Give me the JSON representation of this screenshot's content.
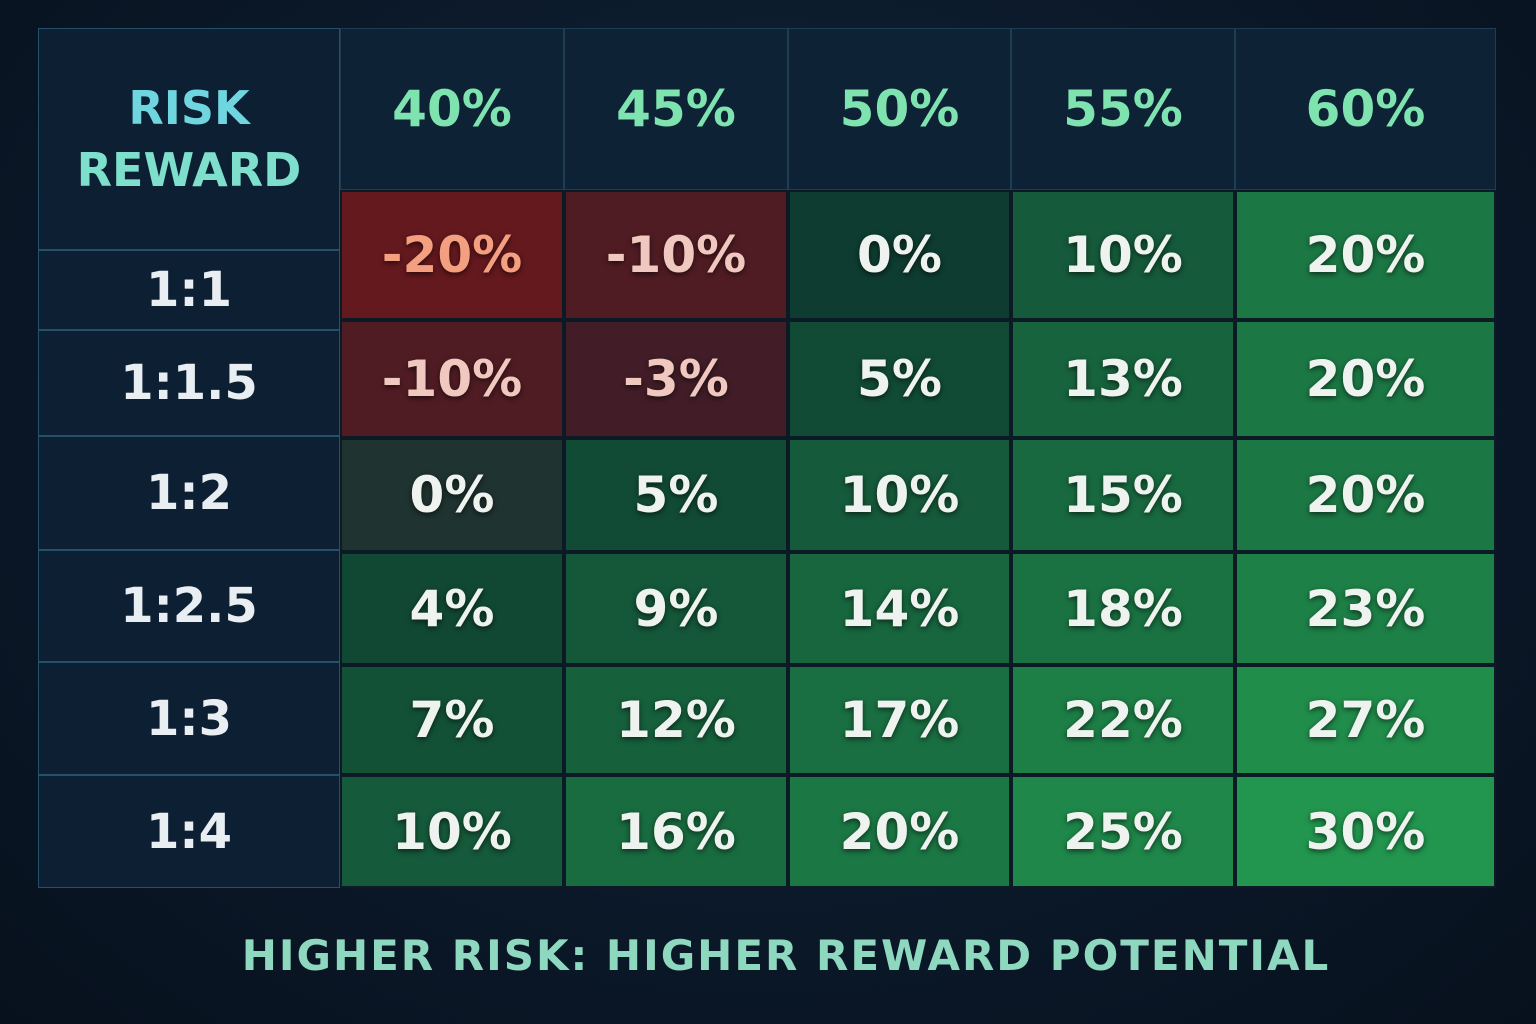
{
  "header": {
    "corner": [
      "RISK",
      "REWARD"
    ]
  },
  "table": {
    "columns": [
      "40%",
      "45%",
      "50%",
      "55%",
      "60%"
    ],
    "rows": [
      {
        "label": "1:1",
        "cells": [
          "-20%",
          "-10%",
          "0%",
          "10%",
          "20%"
        ]
      },
      {
        "label": "1:1.5",
        "cells": [
          "-10%",
          "-3%",
          "5%",
          "13%",
          "20%"
        ]
      },
      {
        "label": "1:2",
        "cells": [
          "0%",
          "5%",
          "10%",
          "15%",
          "20%"
        ]
      },
      {
        "label": "1:2.5",
        "cells": [
          "4%",
          "9%",
          "14%",
          "18%",
          "23%"
        ]
      },
      {
        "label": "1:3",
        "cells": [
          "7%",
          "12%",
          "17%",
          "22%",
          "27%"
        ]
      },
      {
        "label": "1:4",
        "cells": [
          "10%",
          "16%",
          "20%",
          "25%",
          "30%"
        ]
      }
    ]
  },
  "footer": "HIGHER RISK: HIGHER REWARD POTENTIAL"
}
